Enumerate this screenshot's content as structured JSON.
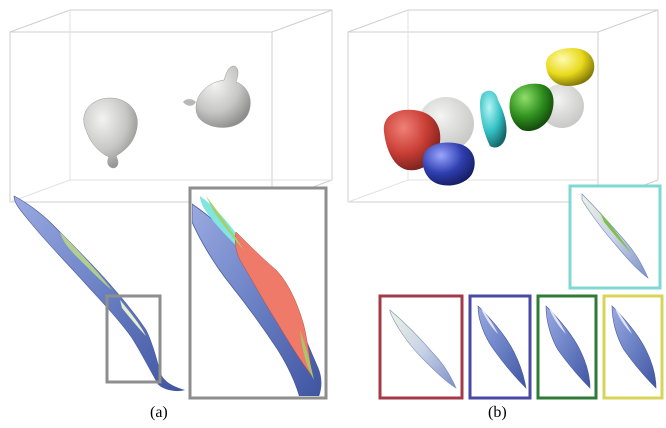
{
  "panels": [
    {
      "caption": "(a)"
    },
    {
      "caption": "(b)"
    }
  ],
  "colors": {
    "box_edge": "#cfcfcf",
    "inset_gray": "#8e8e8e",
    "inset_cyan": "#7fd8d4",
    "inset_red": "#a33a4a",
    "inset_blue": "#4a4aa6",
    "inset_green": "#2e7a36",
    "inset_yellow": "#d8d45a",
    "droplet_gray": "#c9c9c7",
    "drop_red": "#c8352c",
    "drop_blue": "#2f3fb0",
    "drop_cyan": "#36c3c6",
    "drop_green": "#2f8f1f",
    "drop_yellow": "#e8da1c",
    "sheet_blue": "#7b8fd0",
    "sheet_green": "#a7c76a",
    "sheet_salmon": "#f07a6a"
  }
}
